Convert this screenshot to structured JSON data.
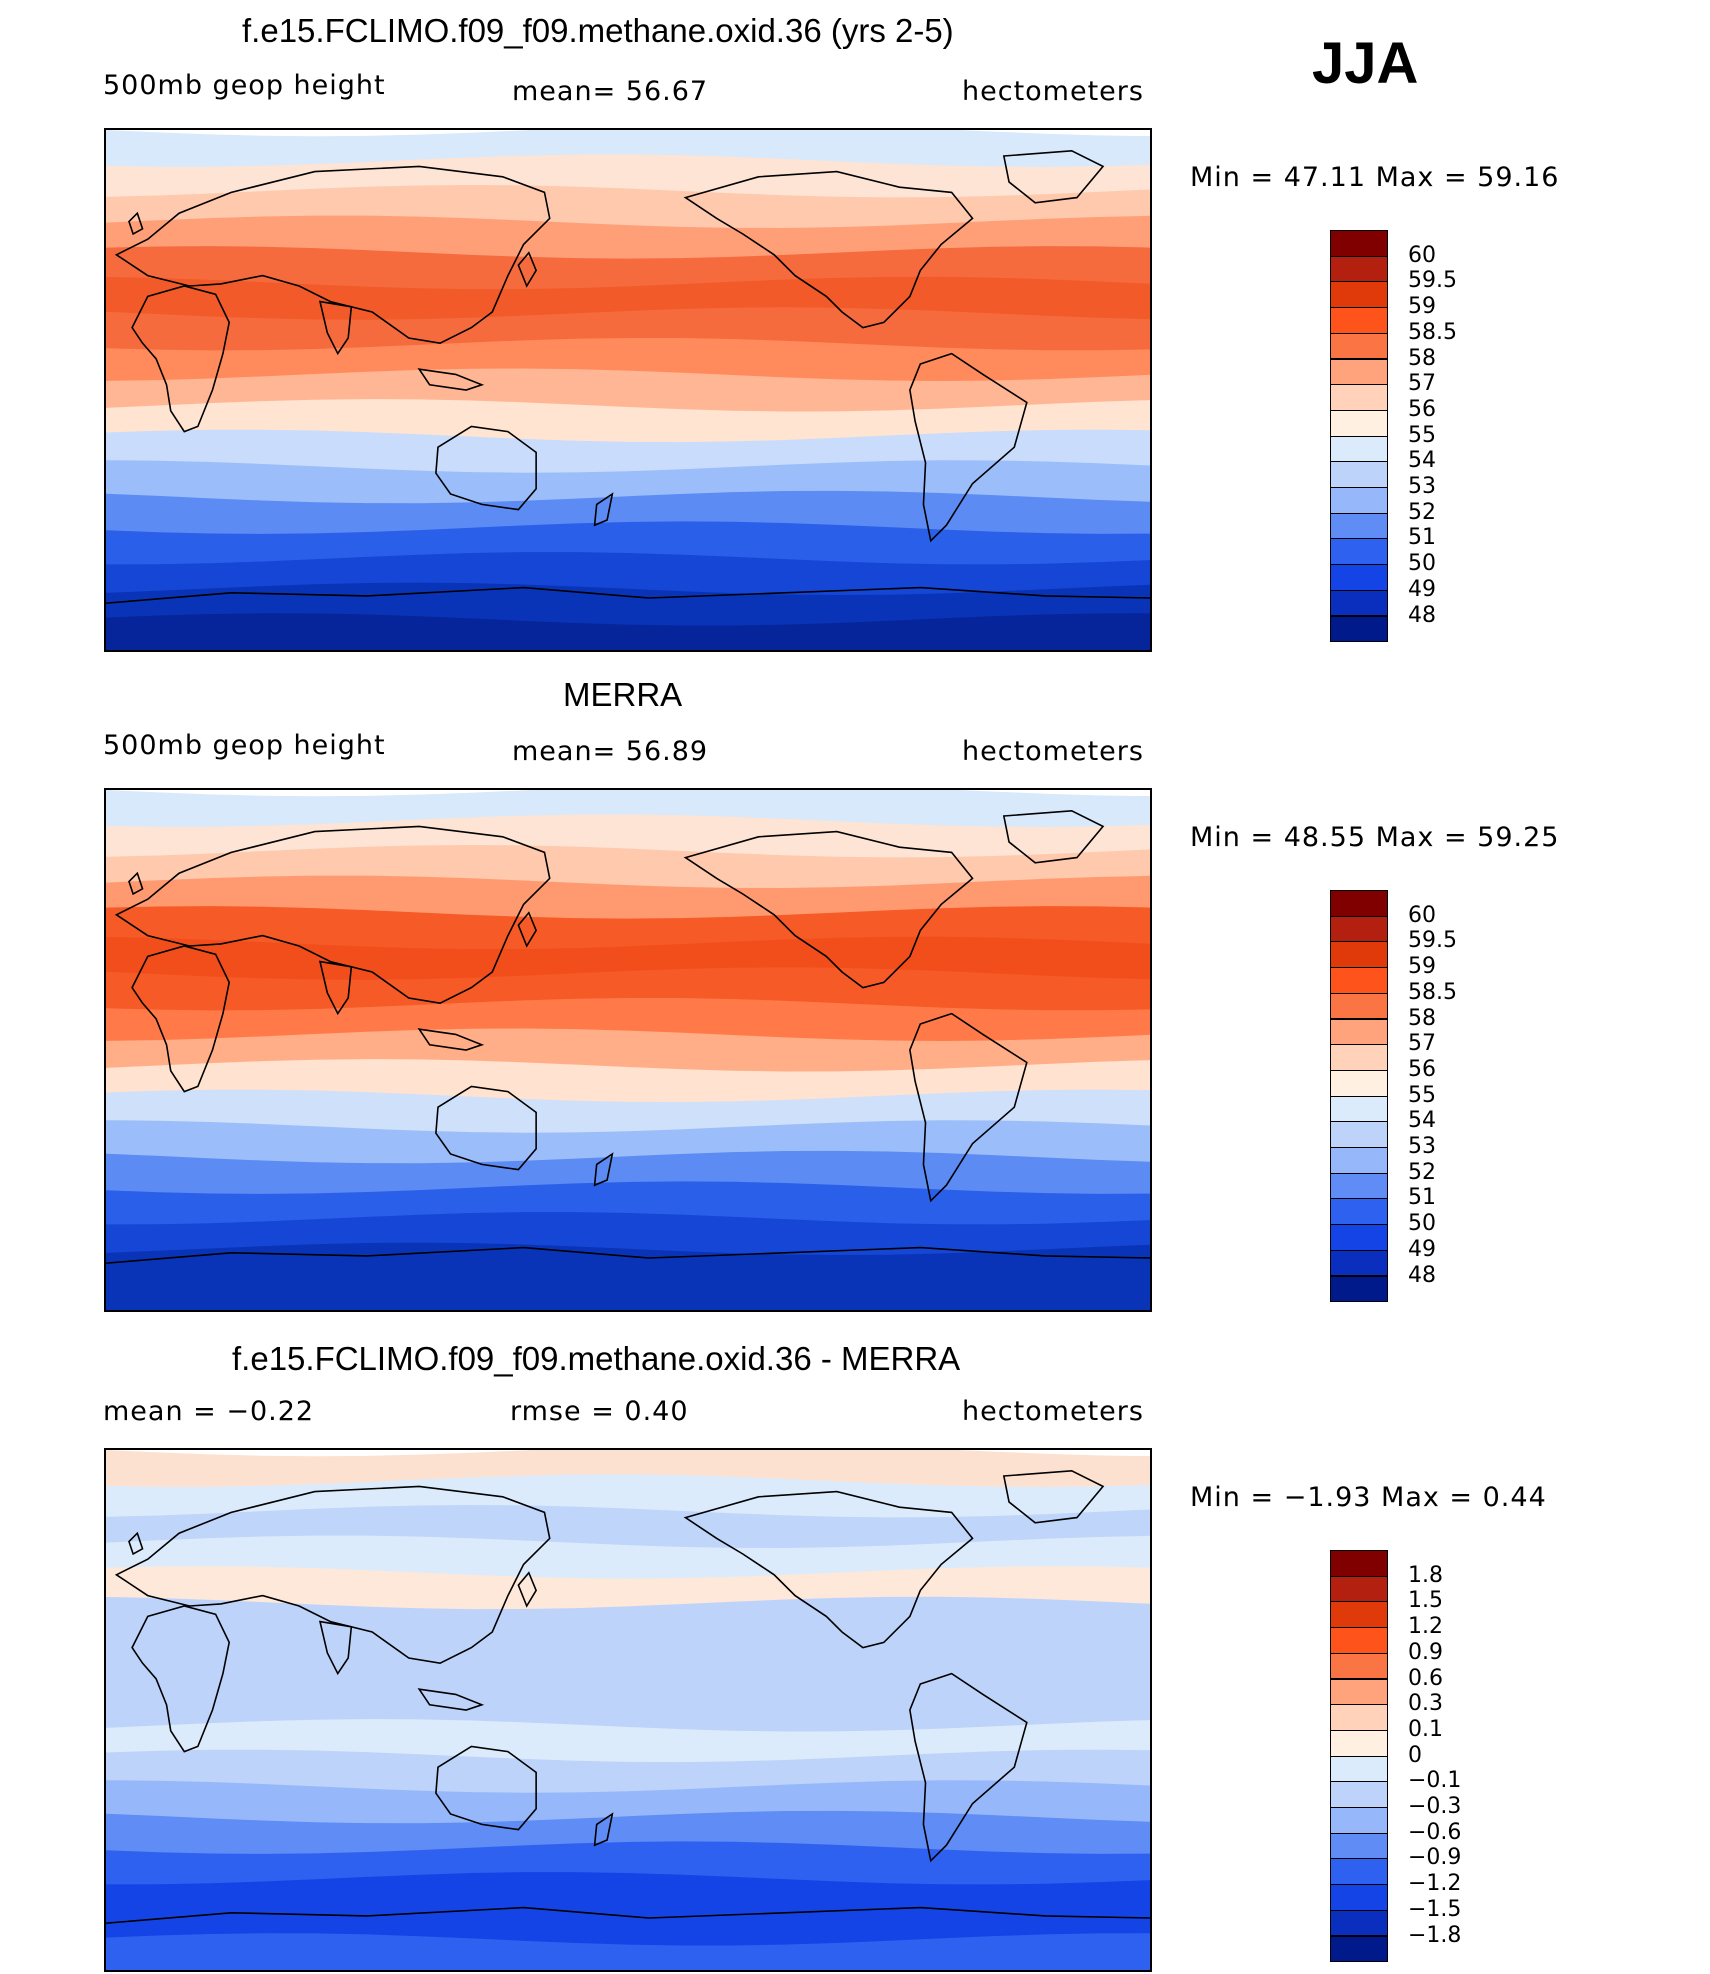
{
  "season": "JJA",
  "panels": [
    {
      "title": "f.e15.FCLIMO.f09_f09.methane.oxid.36 (yrs 2-5)",
      "left_label": "500mb  geop  height",
      "center_label": "mean=   56.67",
      "right_label": "hectometers",
      "minmax": "Min  =    47.11  Max  =    59.16",
      "colorbar": {
        "colors": [
          "#800000",
          "#b3200f",
          "#e0390a",
          "#ff531c",
          "#fa7543",
          "#ffa37d",
          "#ffd2b9",
          "#fff0e1",
          "#dcebfb",
          "#bed3fa",
          "#96b8fa",
          "#5f8cf5",
          "#2f61f0",
          "#1544e6",
          "#0a2ebd",
          "#001a8c"
        ],
        "labels": [
          "60",
          "59.5",
          "59",
          "58.5",
          "58",
          "57",
          "56",
          "55",
          "54",
          "53",
          "52",
          "51",
          "50",
          "49",
          "48"
        ]
      },
      "map_bands": [
        "#d8e9fb",
        "#fde4d4",
        "#ffc9ad",
        "#ff9f78",
        "#f56b3e",
        "#f25a2a",
        "#f56b3e",
        "#ff8a5c",
        "#ffb694",
        "#ffe4d2",
        "#c9dcfb",
        "#9bbdfa",
        "#5c8bf3",
        "#2a5fe9",
        "#1546d6",
        "#0a34b8",
        "#06259a"
      ]
    },
    {
      "title": "MERRA",
      "left_label": "500mb  geop  height",
      "center_label": "mean=   56.89",
      "right_label": "hectometers",
      "minmax": "Min  =    48.55  Max  =    59.25",
      "colorbar": {
        "colors": [
          "#800000",
          "#b3200f",
          "#e0390a",
          "#ff531c",
          "#fa7543",
          "#ffa37d",
          "#ffd2b9",
          "#fff0e1",
          "#dcebfb",
          "#bed3fa",
          "#96b8fa",
          "#5f8cf5",
          "#2f61f0",
          "#1544e6",
          "#0a2ebd",
          "#001a8c"
        ],
        "labels": [
          "60",
          "59.5",
          "59",
          "58.5",
          "58",
          "57",
          "56",
          "55",
          "54",
          "53",
          "52",
          "51",
          "50",
          "49",
          "48"
        ]
      },
      "map_bands": [
        "#d8e9fb",
        "#fde4d4",
        "#ffc9ad",
        "#ff9a70",
        "#f55a27",
        "#f24e1c",
        "#f55a27",
        "#ff7a48",
        "#ffae88",
        "#ffe2cf",
        "#cfe0fb",
        "#9bbdfa",
        "#5c8bf3",
        "#2a5fe9",
        "#1546d6",
        "#0a34b8",
        "#0a34b8"
      ]
    },
    {
      "title": "f.e15.FCLIMO.f09_f09.methane.oxid.36 - MERRA",
      "left_label": "mean  =    −0.22",
      "center_label": "rmse  =     0.40",
      "right_label": "hectometers",
      "minmax": "Min  =    −1.93  Max  =      0.44",
      "colorbar": {
        "colors": [
          "#800000",
          "#b3200f",
          "#e0390a",
          "#ff531c",
          "#fa7543",
          "#ffa37d",
          "#ffd2b9",
          "#fff0e1",
          "#dcebfb",
          "#bed3fa",
          "#96b8fa",
          "#5f8cf5",
          "#2f61f0",
          "#1544e6",
          "#0a2ebd",
          "#001a8c"
        ],
        "labels": [
          "1.8",
          "1.5",
          "1.2",
          "0.9",
          "0.6",
          "0.3",
          "0.1",
          "0",
          "−0.1",
          "−0.3",
          "−0.6",
          "−0.9",
          "−1.2",
          "−1.5",
          "−1.8"
        ]
      },
      "map_bands": [
        "#fde1d0",
        "#dcebfb",
        "#bfd5fa",
        "#dcebfb",
        "#fde8da",
        "#bed3fa",
        "#bed3fa",
        "#bed3fa",
        "#bed3fa",
        "#dcebfb",
        "#bed3fa",
        "#96b8fa",
        "#5f8cf5",
        "#2f61f0",
        "#1544e6",
        "#1544e6",
        "#2f61f0"
      ]
    }
  ]
}
